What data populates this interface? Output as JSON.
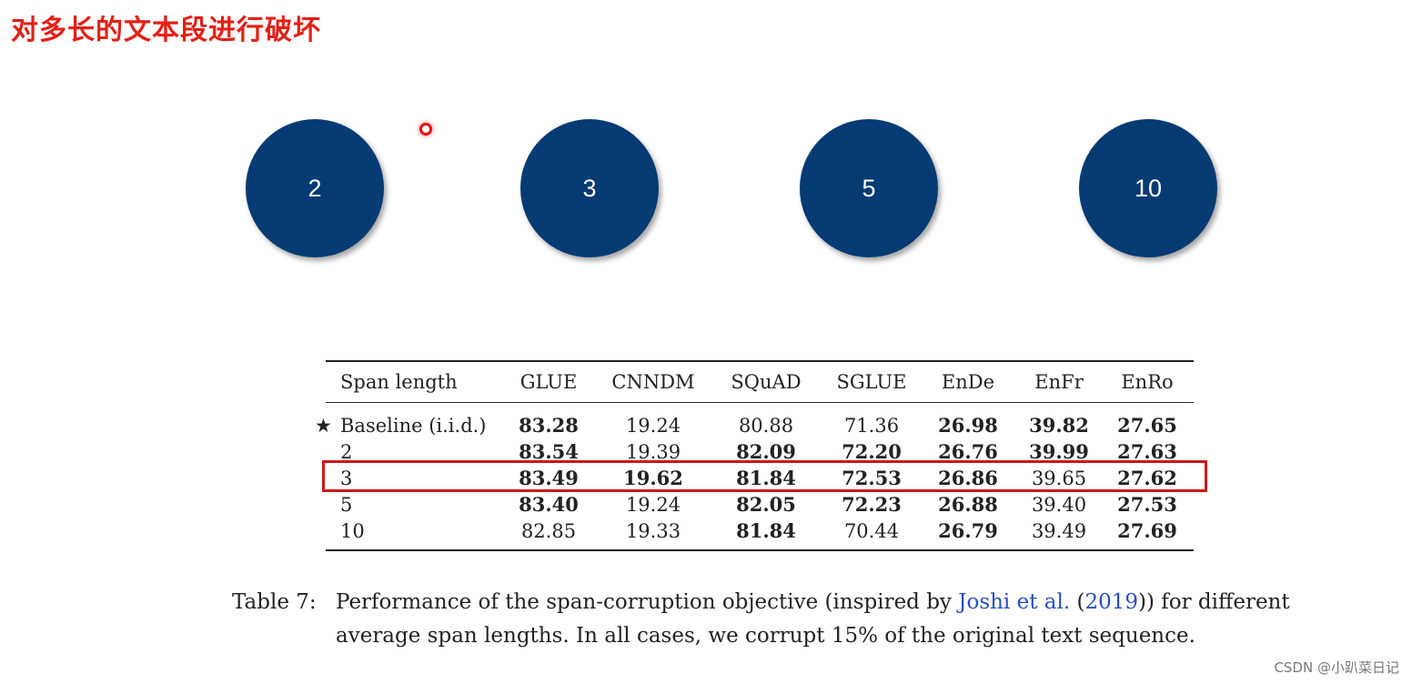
{
  "slide": {
    "title": "对多长的文本段进行破坏"
  },
  "span_circles": [
    "2",
    "3",
    "5",
    "10"
  ],
  "colors": {
    "title": "#e32017",
    "circle_fill": "#063b73",
    "highlight_box": "#cc1818",
    "citation_link": "#2a4fbf"
  },
  "table": {
    "headers": [
      "Span length",
      "GLUE",
      "CNNDM",
      "SQuAD",
      "SGLUE",
      "EnDe",
      "EnFr",
      "EnRo"
    ],
    "baseline_marker": "★",
    "highlighted_row": "3",
    "rows": [
      {
        "label": "Baseline (i.i.d.)",
        "values": [
          "83.28",
          "19.24",
          "80.88",
          "71.36",
          "26.98",
          "39.82",
          "27.65"
        ],
        "bold": [
          true,
          false,
          false,
          false,
          true,
          true,
          true
        ]
      },
      {
        "label": "2",
        "values": [
          "83.54",
          "19.39",
          "82.09",
          "72.20",
          "26.76",
          "39.99",
          "27.63"
        ],
        "bold": [
          true,
          false,
          true,
          true,
          true,
          true,
          true
        ]
      },
      {
        "label": "3",
        "values": [
          "83.49",
          "19.62",
          "81.84",
          "72.53",
          "26.86",
          "39.65",
          "27.62"
        ],
        "bold": [
          true,
          true,
          true,
          true,
          true,
          false,
          true
        ]
      },
      {
        "label": "5",
        "values": [
          "83.40",
          "19.24",
          "82.05",
          "72.23",
          "26.88",
          "39.40",
          "27.53"
        ],
        "bold": [
          true,
          false,
          true,
          true,
          true,
          false,
          true
        ]
      },
      {
        "label": "10",
        "values": [
          "82.85",
          "19.33",
          "81.84",
          "70.44",
          "26.79",
          "39.49",
          "27.69"
        ],
        "bold": [
          false,
          false,
          true,
          false,
          true,
          false,
          true
        ]
      }
    ]
  },
  "caption": {
    "label": "Table 7:",
    "text_before": "Performance of the span-corruption objective (inspired by ",
    "link_text": "Joshi et al.",
    "link_paren_open": " (",
    "link_year": "2019",
    "text_after": ")) for different average span lengths. In all cases, we corrupt 15% of the original text sequence."
  },
  "watermark": "CSDN @小趴菜日记"
}
